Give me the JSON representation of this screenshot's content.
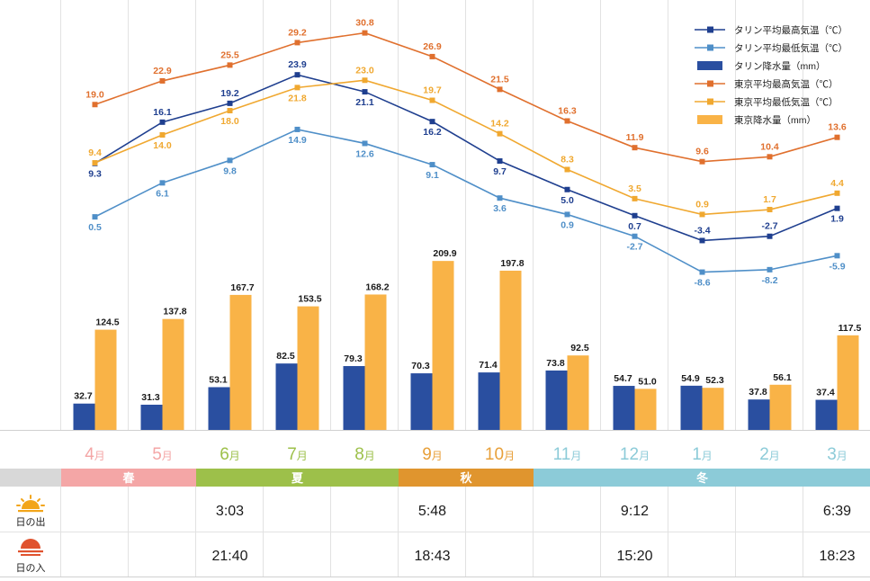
{
  "chart_data": {
    "type": "bar",
    "categories": [
      "4",
      "5",
      "6",
      "7",
      "8",
      "9",
      "10",
      "11",
      "12",
      "1",
      "2",
      "3"
    ],
    "month_suffix": "月",
    "month_colors": [
      "#f4a6a6",
      "#f4a6a6",
      "#9dc04a",
      "#9dc04a",
      "#9dc04a",
      "#e8a03a",
      "#e8a03a",
      "#8ccbd8",
      "#8ccbd8",
      "#8ccbd8",
      "#8ccbd8",
      "#8ccbd8"
    ],
    "series": [
      {
        "name": "タリン平均最高気温（℃）",
        "kind": "line",
        "color": "#1f3f8f",
        "values": [
          9.3,
          16.1,
          19.2,
          23.9,
          21.1,
          16.2,
          9.7,
          5.0,
          0.7,
          -3.4,
          -2.7,
          1.9
        ]
      },
      {
        "name": "タリン平均最低気温（℃）",
        "kind": "line",
        "color": "#4f8fc8",
        "values": [
          0.5,
          6.1,
          9.8,
          14.9,
          12.6,
          9.1,
          3.6,
          0.9,
          -2.7,
          -8.6,
          -8.2,
          -5.9
        ]
      },
      {
        "name": "タリン降水量（mm）",
        "kind": "bar",
        "color": "#2a4fa0",
        "values": [
          32.7,
          31.3,
          53.1,
          82.5,
          79.3,
          70.3,
          71.4,
          73.8,
          54.7,
          54.9,
          37.8,
          37.4
        ]
      },
      {
        "name": "東京平均最高気温（℃）",
        "kind": "line",
        "color": "#e0702e",
        "values": [
          19.0,
          22.9,
          25.5,
          29.2,
          30.8,
          26.9,
          21.5,
          16.3,
          11.9,
          9.6,
          10.4,
          13.6
        ]
      },
      {
        "name": "東京平均最低気温（℃）",
        "kind": "line",
        "color": "#f0a830",
        "values": [
          9.4,
          14.0,
          18.0,
          21.8,
          23.0,
          19.7,
          14.2,
          8.3,
          3.5,
          0.9,
          1.7,
          4.4
        ]
      },
      {
        "name": "東京降水量（mm）",
        "kind": "bar",
        "color": "#f9b347",
        "values": [
          124.5,
          137.8,
          167.7,
          153.5,
          168.2,
          209.9,
          197.8,
          92.5,
          51.0,
          52.3,
          56.1,
          117.5
        ]
      }
    ],
    "legend_position": "top-right"
  },
  "seasons": [
    {
      "label": "春",
      "start": 0,
      "span": 2,
      "color": "#f4a6a6"
    },
    {
      "label": "夏",
      "start": 2,
      "span": 3,
      "color": "#9dc04a"
    },
    {
      "label": "秋",
      "start": 5,
      "span": 2,
      "color": "#e0952e"
    },
    {
      "label": "冬",
      "start": 7,
      "span": 5,
      "color": "#8ccbd8"
    }
  ],
  "sun": {
    "sunrise_label": "日の出",
    "sunset_label": "日の入",
    "entries": [
      {
        "index": 2,
        "sunrise": "3:03",
        "sunset": "21:40"
      },
      {
        "index": 5,
        "sunrise": "5:48",
        "sunset": "18:43"
      },
      {
        "index": 8,
        "sunrise": "9:12",
        "sunset": "15:20"
      },
      {
        "index": 11,
        "sunrise": "6:39",
        "sunset": "18:23"
      }
    ]
  }
}
